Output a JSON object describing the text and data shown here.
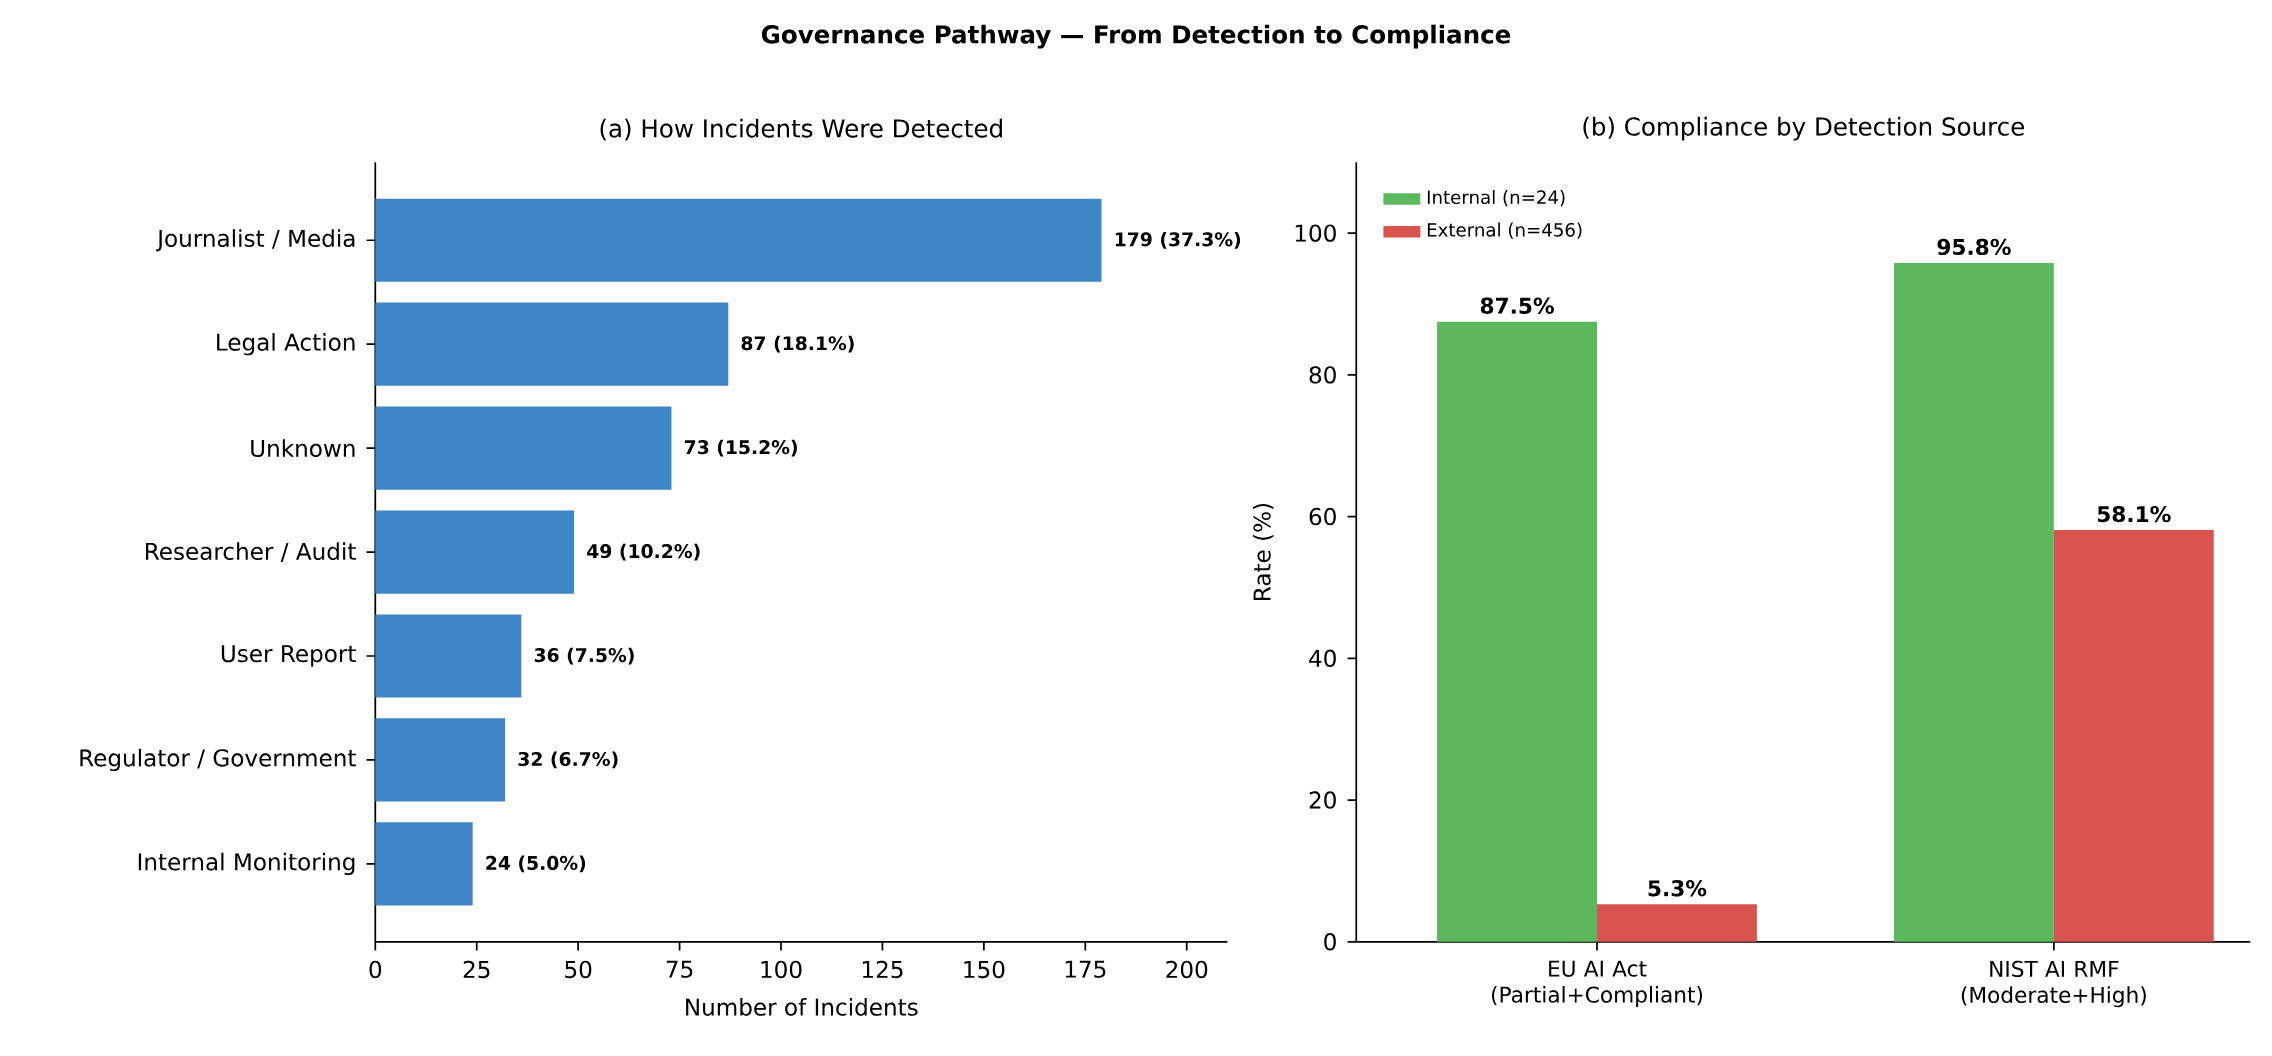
{
  "chart_data": [
    {
      "type": "bar",
      "orientation": "horizontal",
      "title": "Governance Pathway — From Detection to Compliance",
      "subtitle": "(a) How Incidents Were Detected",
      "xlabel": "Number of Incidents",
      "categories": [
        "Journalist / Media",
        "Legal Action",
        "Unknown",
        "Researcher / Audit",
        "User Report",
        "Regulator / Government",
        "Internal Monitoring"
      ],
      "values": [
        179,
        87,
        73,
        49,
        36,
        32,
        24
      ],
      "value_labels": [
        "179 (37.3%)",
        "87 (18.1%)",
        "73 (15.2%)",
        "49 (10.2%)",
        "36 (7.5%)",
        "32 (6.7%)",
        "24 (5.0%)"
      ],
      "color": "#3f86c6",
      "xlim": [
        0,
        210
      ],
      "xticks": [
        0,
        25,
        50,
        75,
        100,
        125,
        150,
        175,
        200
      ]
    },
    {
      "type": "bar",
      "title": "(b) Compliance by Detection Source",
      "ylabel": "Rate (%)",
      "categories": [
        "EU AI Act (Partial+Compliant)",
        "NIST AI RMF (Moderate+High)"
      ],
      "series": [
        {
          "name": "Internal (n=24)",
          "color": "#5cb85c",
          "values": [
            87.5,
            95.8
          ],
          "value_labels": [
            "87.5%",
            "95.8%"
          ]
        },
        {
          "name": "External (n=456)",
          "color": "#d9534f",
          "values": [
            5.3,
            58.1
          ],
          "value_labels": [
            "5.3%",
            "58.1%"
          ]
        }
      ],
      "ylim": [
        0,
        110
      ],
      "yticks": [
        0,
        20,
        40,
        60,
        80,
        100
      ],
      "legend": "top left"
    }
  ]
}
